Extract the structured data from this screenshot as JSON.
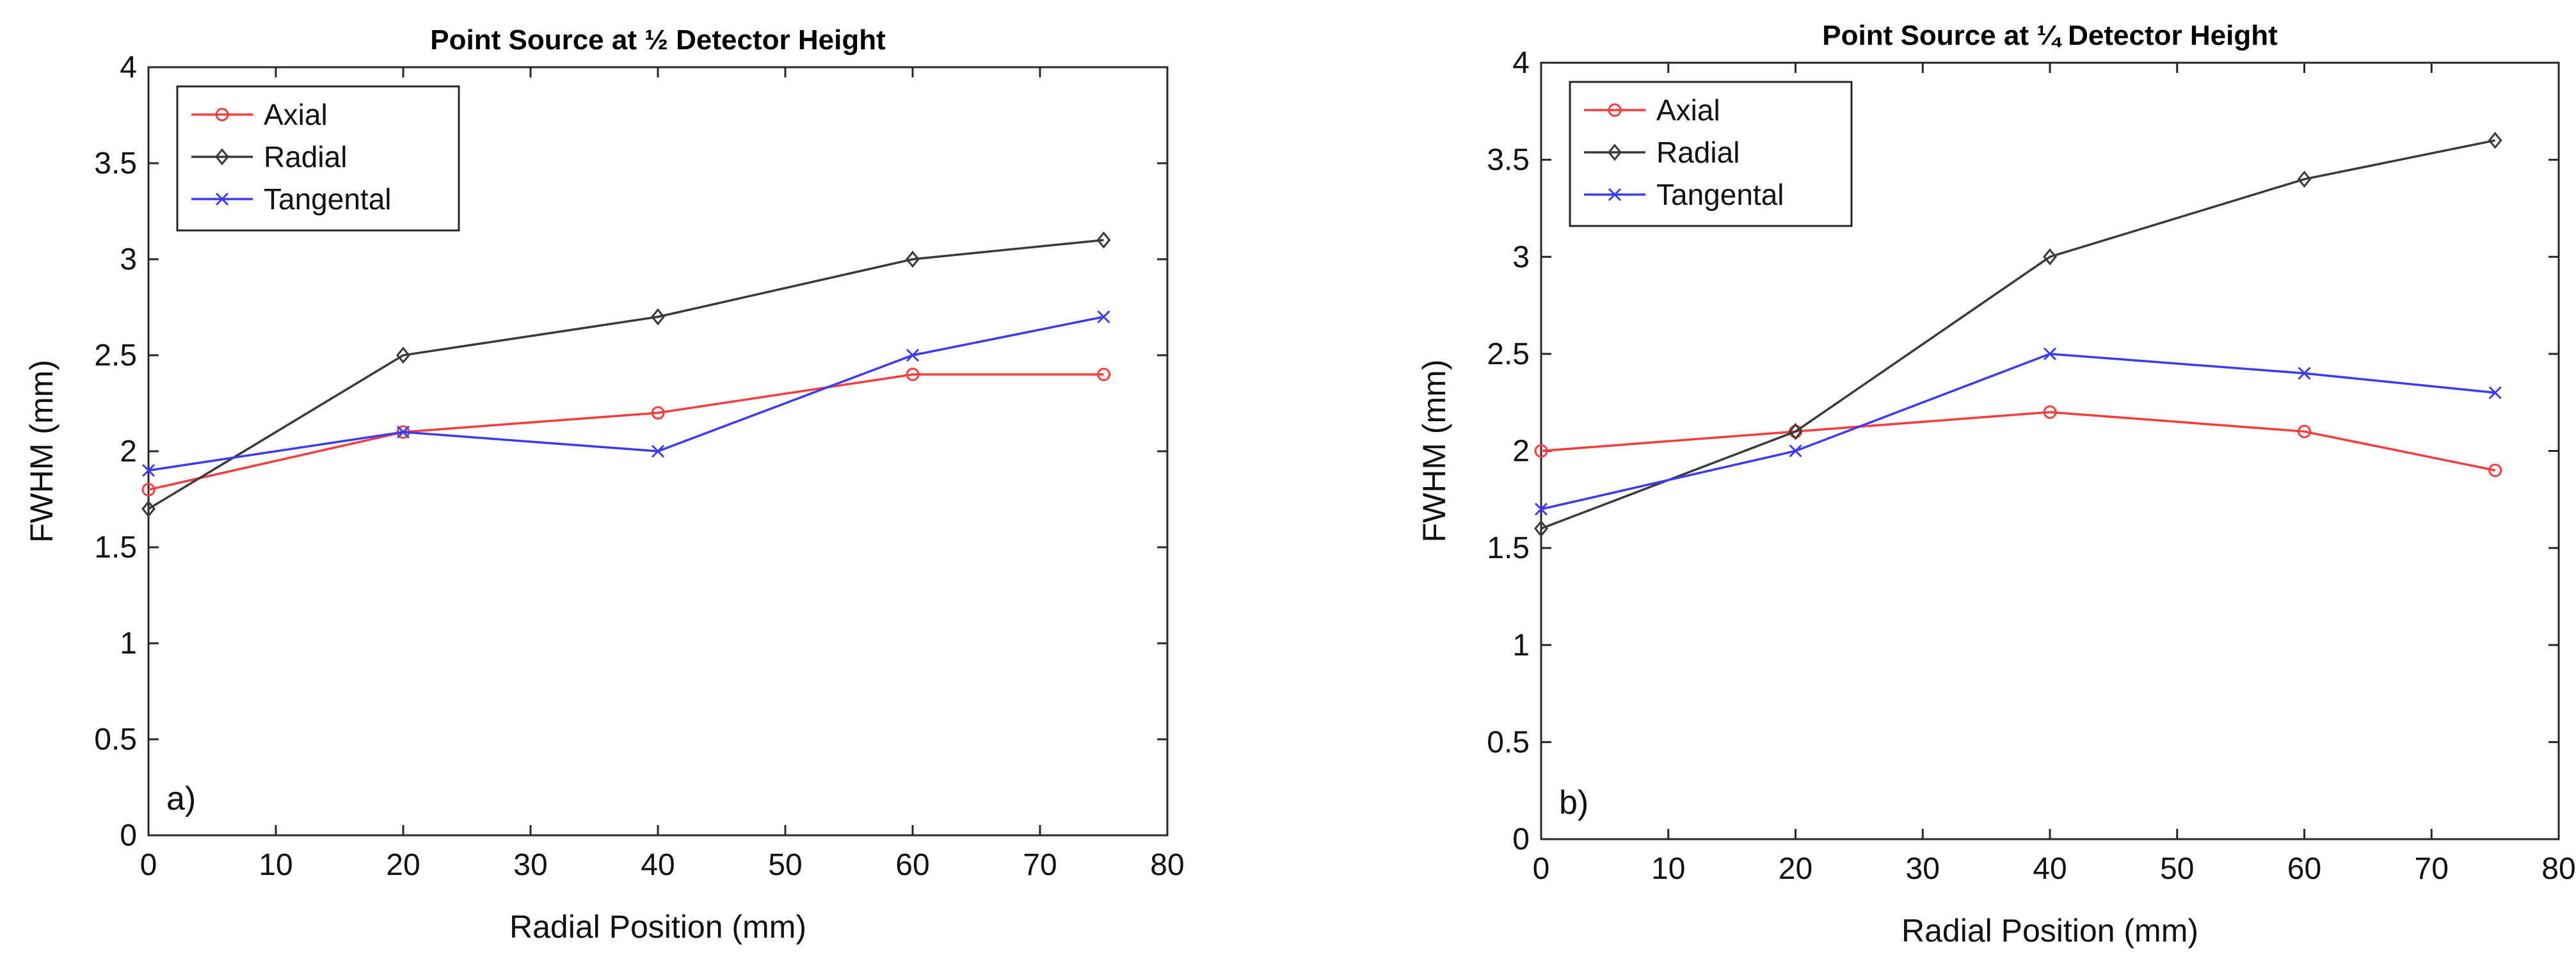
{
  "chart_data": [
    {
      "type": "line",
      "panel_label": "a)",
      "title": "Point Source at ½ Detector Height",
      "xlabel": "Radial Position (mm)",
      "ylabel": "FWHM (mm)",
      "xlim": [
        0,
        80
      ],
      "ylim": [
        0,
        4
      ],
      "xticks": [
        0,
        10,
        20,
        30,
        40,
        50,
        60,
        70,
        80
      ],
      "yticks": [
        0,
        0.5,
        1,
        1.5,
        2,
        2.5,
        3,
        3.5,
        4
      ],
      "legend_position": "top-left",
      "x": [
        0,
        20,
        40,
        60,
        75
      ],
      "series": [
        {
          "name": "Axial",
          "marker": "circle",
          "color": "#ff3b3b",
          "values": [
            1.8,
            2.1,
            2.2,
            2.4,
            2.4
          ]
        },
        {
          "name": "Radial",
          "marker": "diamond",
          "color": "#3a3a3a",
          "values": [
            1.7,
            2.5,
            2.7,
            3.0,
            3.1
          ]
        },
        {
          "name": "Tangental",
          "marker": "x",
          "color": "#3b3bff",
          "values": [
            1.9,
            2.1,
            2.0,
            2.5,
            2.7
          ]
        }
      ]
    },
    {
      "type": "line",
      "panel_label": "b)",
      "title": "Point Source at ¼ Detector Height",
      "xlabel": "Radial Position (mm)",
      "ylabel": "FWHM (mm)",
      "xlim": [
        0,
        80
      ],
      "ylim": [
        0,
        4
      ],
      "xticks": [
        0,
        10,
        20,
        30,
        40,
        50,
        60,
        70,
        80
      ],
      "yticks": [
        0,
        0.5,
        1,
        1.5,
        2,
        2.5,
        3,
        3.5,
        4
      ],
      "legend_position": "top-left",
      "x": [
        0,
        20,
        40,
        60,
        75
      ],
      "series": [
        {
          "name": "Axial",
          "marker": "circle",
          "color": "#ff3b3b",
          "values": [
            2.0,
            2.1,
            2.2,
            2.1,
            1.9
          ]
        },
        {
          "name": "Radial",
          "marker": "diamond",
          "color": "#3a3a3a",
          "values": [
            1.6,
            2.1,
            3.0,
            3.4,
            3.6
          ]
        },
        {
          "name": "Tangental",
          "marker": "x",
          "color": "#3b3bff",
          "values": [
            1.7,
            2.0,
            2.5,
            2.4,
            2.3
          ]
        }
      ]
    }
  ]
}
